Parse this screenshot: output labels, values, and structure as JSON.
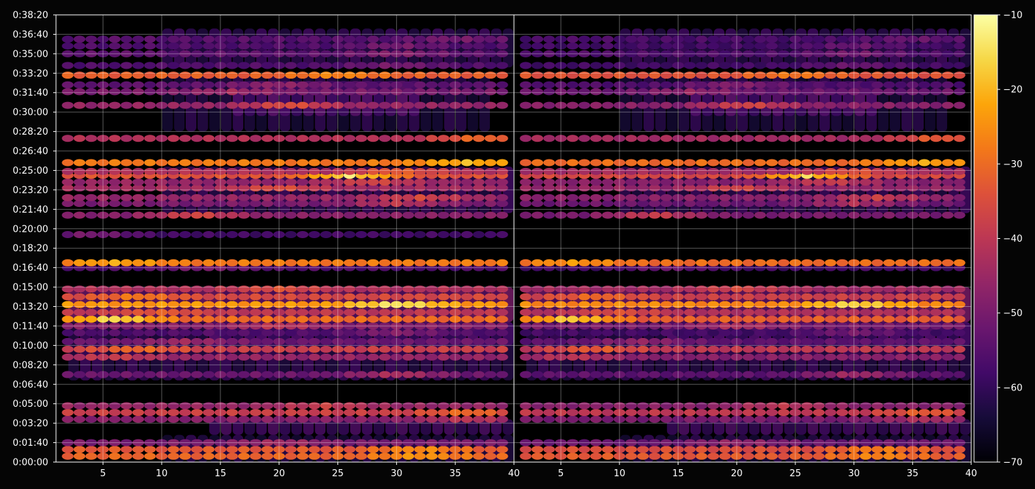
{
  "chart_data": {
    "type": "heatmap",
    "title": "",
    "xlabel": "",
    "ylabel": "",
    "panels": [
      {
        "xlim": [
          1,
          40
        ],
        "xticks": [
          "5",
          "10",
          "15",
          "20",
          "25",
          "30",
          "35",
          "40"
        ]
      },
      {
        "xlim": [
          1,
          40
        ],
        "xticks": [
          "5",
          "10",
          "15",
          "20",
          "25",
          "30",
          "35",
          "40"
        ]
      }
    ],
    "ylim": [
      0,
      2300
    ],
    "yticks": [
      "0:00:00",
      "0:01:40",
      "0:03:20",
      "0:05:00",
      "0:06:40",
      "0:08:20",
      "0:10:00",
      "0:11:40",
      "0:13:20",
      "0:15:00",
      "0:16:40",
      "0:18:20",
      "0:20:00",
      "0:21:40",
      "0:23:20",
      "0:25:00",
      "0:26:40",
      "0:28:20",
      "0:30:00",
      "0:31:40",
      "0:33:20",
      "0:35:00",
      "0:36:40",
      "0:38:20"
    ],
    "colorbar": {
      "colormap": "inferno",
      "range": [
        -70,
        -10
      ],
      "ticks": [
        "−10",
        "−20",
        "−30",
        "−40",
        "−50",
        "−60",
        "−70"
      ]
    },
    "bands": [
      {
        "y": 30,
        "level": -31,
        "peak": -24,
        "peak_x": 32,
        "panel": "both"
      },
      {
        "y": 65,
        "level": -33,
        "peak": -25,
        "peak_x": 32,
        "panel": "both"
      },
      {
        "y": 100,
        "level": -50,
        "peak": -44,
        "peak_x": 20,
        "panel": "both"
      },
      {
        "y": 220,
        "level": -48,
        "peak": -40,
        "peak_x": 36,
        "panel": "both"
      },
      {
        "y": 255,
        "level": -38,
        "peak": -30,
        "peak_x": 36,
        "panel": "both"
      },
      {
        "y": 290,
        "level": -46,
        "peak": -38,
        "peak_x": 24,
        "panel": "both"
      },
      {
        "y": 450,
        "level": -52,
        "peak": -42,
        "peak_x": 30,
        "panel": "both"
      },
      {
        "y": 540,
        "level": -46,
        "peak": -38,
        "peak_x": 6,
        "panel": "both"
      },
      {
        "y": 580,
        "level": -38,
        "peak": -30,
        "peak_x": 8,
        "panel": "both"
      },
      {
        "y": 620,
        "level": -52,
        "peak": -44,
        "peak_x": 12,
        "panel": "both"
      },
      {
        "y": 665,
        "level": -56,
        "peak": -48,
        "peak_x": 30,
        "panel": "both"
      },
      {
        "y": 700,
        "level": -48,
        "peak": -40,
        "peak_x": 20,
        "panel": "both"
      },
      {
        "y": 735,
        "level": -30,
        "peak": -15,
        "peak_x": 6,
        "panel": "both"
      },
      {
        "y": 770,
        "level": -40,
        "peak": -32,
        "peak_x": 10,
        "panel": "both"
      },
      {
        "y": 810,
        "level": -24,
        "peak": -14,
        "peak_x": 30,
        "panel": "both"
      },
      {
        "y": 850,
        "level": -36,
        "peak": -28,
        "peak_x": 8,
        "panel": "both"
      },
      {
        "y": 890,
        "level": -42,
        "peak": -34,
        "peak_x": 20,
        "panel": "both"
      },
      {
        "y": 1000,
        "level": -56,
        "peak": -50,
        "peak_x": 14,
        "panel": "both"
      },
      {
        "y": 1025,
        "level": -28,
        "peak": -22,
        "peak_x": 6,
        "panel": "both"
      },
      {
        "y": 1170,
        "level": -58,
        "peak": -50,
        "peak_x": 4,
        "panel": "left"
      },
      {
        "y": 1270,
        "level": -48,
        "peak": -36,
        "peak_x": 13,
        "panel": "both"
      },
      {
        "y": 1330,
        "level": -50,
        "peak": -40,
        "peak_x": 30,
        "panel": "both"
      },
      {
        "y": 1360,
        "level": -46,
        "peak": -36,
        "peak_x": 32,
        "panel": "both"
      },
      {
        "y": 1410,
        "level": -44,
        "peak": -34,
        "peak_x": 20,
        "panel": "both"
      },
      {
        "y": 1440,
        "level": -46,
        "peak": -36,
        "peak_x": 28,
        "panel": "both"
      },
      {
        "y": 1475,
        "level": -34,
        "peak": -14,
        "peak_x": 26,
        "panel": "both"
      },
      {
        "y": 1495,
        "level": -42,
        "peak": -32,
        "peak_x": 30,
        "panel": "both"
      },
      {
        "y": 1540,
        "level": -28,
        "peak": -20,
        "peak_x": 36,
        "panel": "both"
      },
      {
        "y": 1665,
        "level": -42,
        "peak": -30,
        "peak_x": 37,
        "panel": "both"
      },
      {
        "y": 1835,
        "level": -46,
        "peak": -34,
        "peak_x": 21,
        "panel": "both"
      },
      {
        "y": 1905,
        "level": -50,
        "peak": -44,
        "peak_x": 16,
        "panel": "both"
      },
      {
        "y": 1940,
        "level": -54,
        "peak": -46,
        "peak_x": 20,
        "panel": "both"
      },
      {
        "y": 1990,
        "level": -32,
        "peak": -26,
        "peak_x": 25,
        "panel": "both"
      },
      {
        "y": 2040,
        "level": -56,
        "peak": -50,
        "peak_x": 30,
        "panel": "both"
      },
      {
        "y": 2100,
        "level": -54,
        "peak": -48,
        "peak_x": 30,
        "panel": "both"
      },
      {
        "y": 2140,
        "level": -56,
        "peak": -50,
        "peak_x": 30,
        "panel": "both"
      },
      {
        "y": 2175,
        "level": -55,
        "peak": -50,
        "peak_x": 35,
        "panel": "both"
      }
    ],
    "background_regions": [
      {
        "x": [
          10,
          40
        ],
        "y": [
          0,
          140
        ],
        "level": -62
      },
      {
        "x": [
          14,
          40
        ],
        "y": [
          140,
          220
        ],
        "level": -58
      },
      {
        "x": [
          2,
          40
        ],
        "y": [
          420,
          720
        ],
        "level": -60
      },
      {
        "x": [
          14,
          40
        ],
        "y": [
          600,
          720
        ],
        "level": -58
      },
      {
        "x": [
          2,
          40
        ],
        "y": [
          720,
          900
        ],
        "level": -52
      },
      {
        "x": [
          10,
          40
        ],
        "y": [
          1280,
          1520
        ],
        "level": -60
      },
      {
        "x": [
          10,
          38
        ],
        "y": [
          1700,
          1990
        ],
        "level": -62
      },
      {
        "x": [
          16,
          32
        ],
        "y": [
          1780,
          1960
        ],
        "level": -56
      },
      {
        "x": [
          10,
          40
        ],
        "y": [
          2030,
          2230
        ],
        "level": -60
      }
    ]
  }
}
